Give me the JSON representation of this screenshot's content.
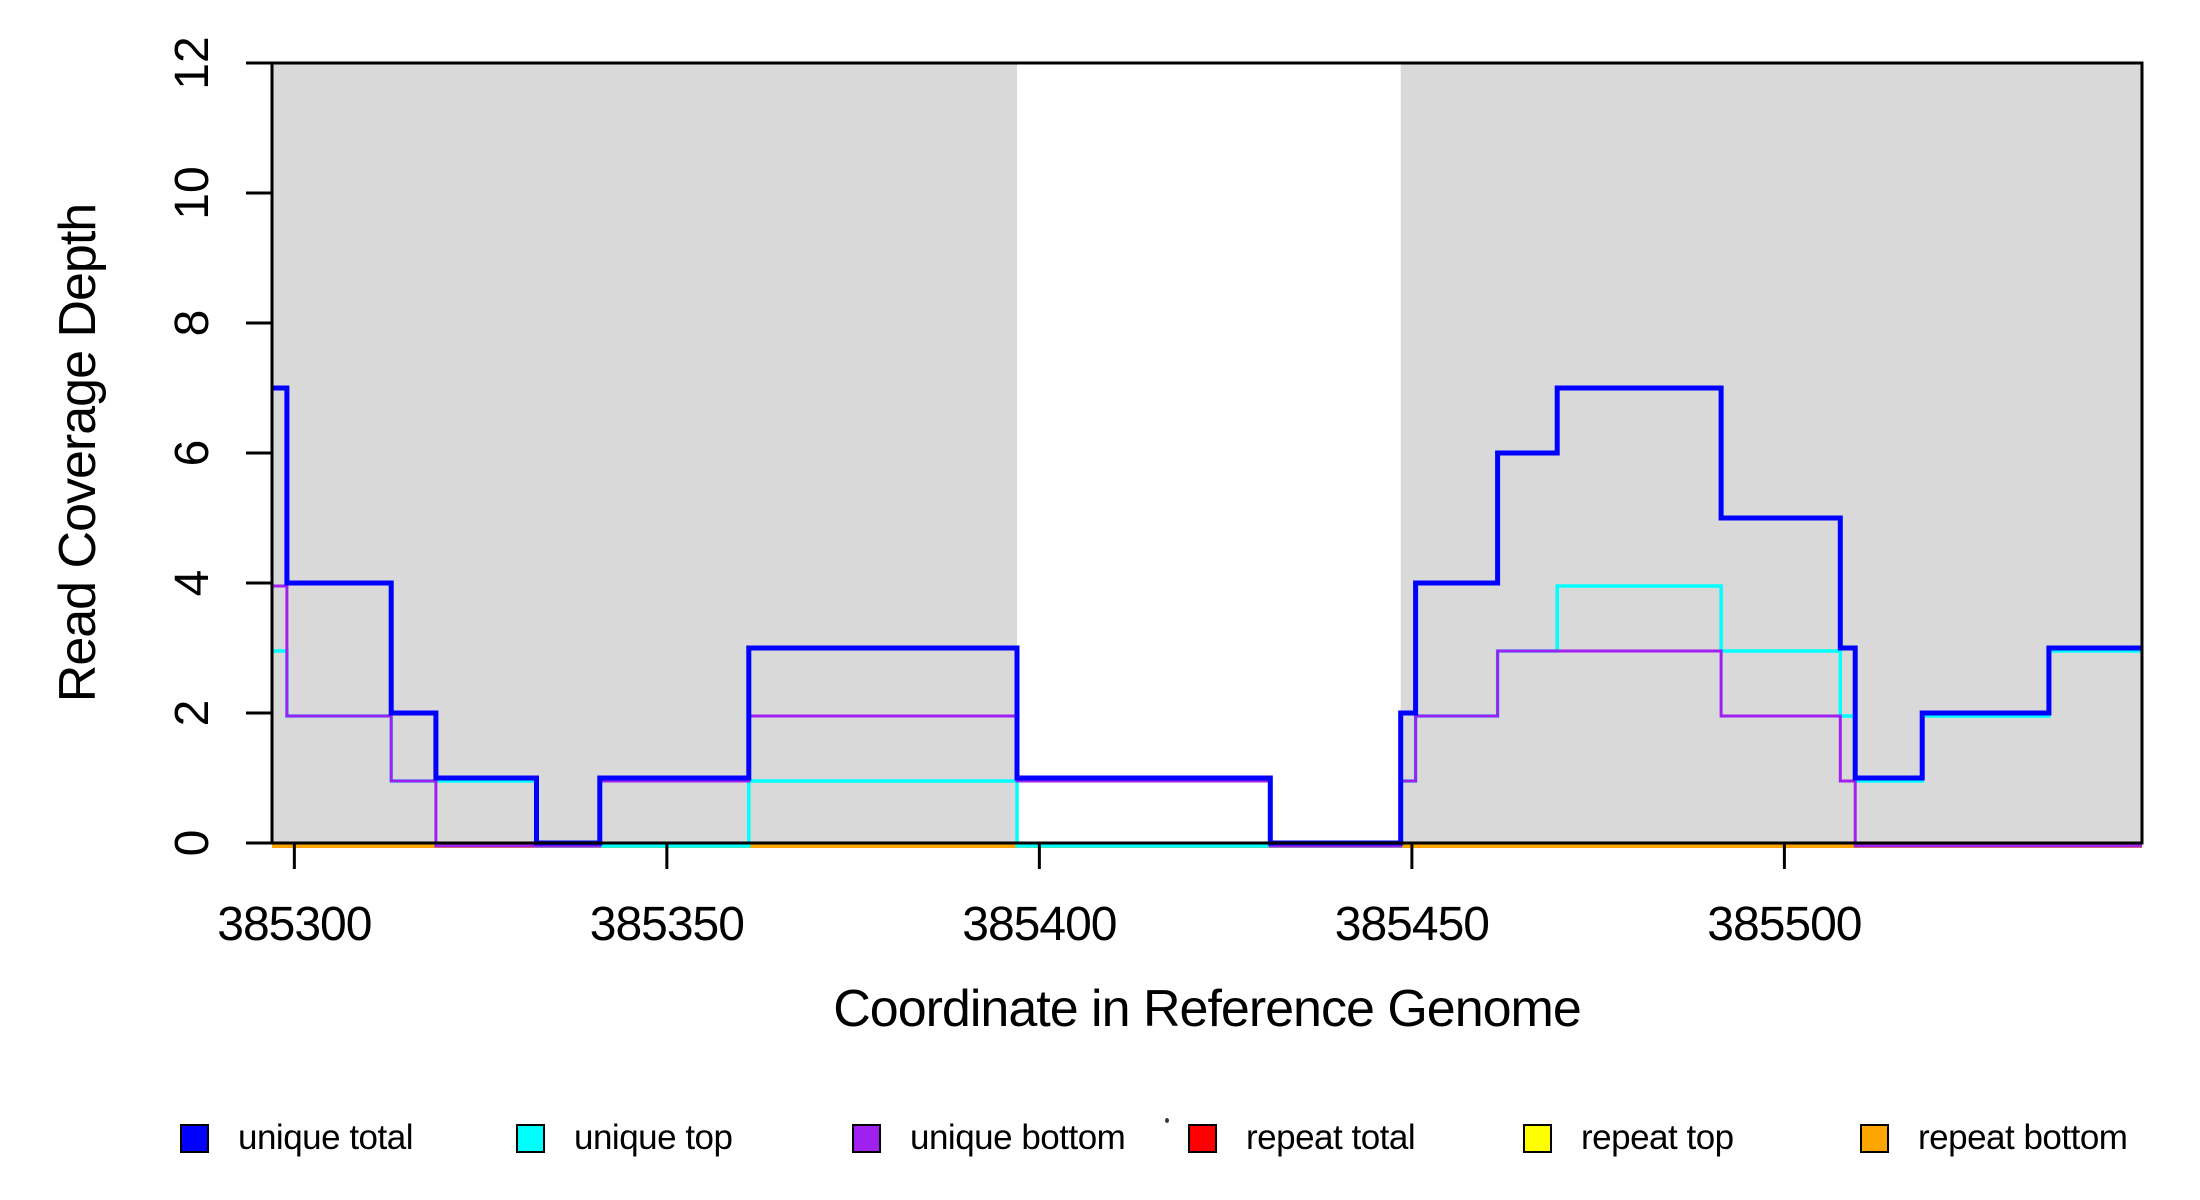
{
  "chart_data": {
    "type": "line",
    "subtype": "step-coverage-plot",
    "title": "",
    "xlabel": "Coordinate in Reference Genome",
    "ylabel": "Read Coverage Depth",
    "xlim": [
      385297,
      385548
    ],
    "ylim": [
      0,
      12
    ],
    "xticks": [
      385300,
      385350,
      385400,
      385450,
      385500
    ],
    "yticks": [
      0,
      2,
      4,
      6,
      8,
      10,
      12
    ],
    "grid": false,
    "legend_position": "bottom",
    "shade_color": "#D9D9D9",
    "axis_color": "#000000",
    "shaded_regions": [
      [
        385297,
        385397
      ],
      [
        385448.5,
        385548
      ]
    ],
    "step_breaks": [
      385297,
      385299,
      385313,
      385319,
      385332.5,
      385341,
      385361,
      385397,
      385431,
      385448.5,
      385450.5,
      385461.5,
      385469.5,
      385491.5,
      385507.5,
      385509.5,
      385518.5,
      385535.5,
      385548
    ],
    "series": [
      {
        "name": "unique total",
        "color": "#0000FF",
        "width": 5,
        "offset": 0,
        "values": [
          7,
          4,
          2,
          1,
          0,
          1,
          3,
          1,
          0,
          2,
          4,
          6,
          7,
          5,
          3,
          1,
          2,
          3
        ]
      },
      {
        "name": "unique top",
        "color": "#00FFFF",
        "width": 3.5,
        "offset": 3,
        "values": [
          3,
          2,
          1,
          1,
          0,
          0,
          1,
          0,
          0,
          1,
          2,
          3,
          4,
          3,
          2,
          1,
          2,
          3
        ]
      },
      {
        "name": "unique bottom",
        "color": "#A020F0",
        "width": 3,
        "offset": 3,
        "values": [
          4,
          2,
          1,
          0,
          0,
          1,
          2,
          1,
          0,
          1,
          2,
          3,
          3,
          2,
          1,
          0,
          0,
          0
        ]
      },
      {
        "name": "repeat total",
        "color": "#FF0000",
        "width": 3,
        "offset": 2.5,
        "values": [
          0,
          0,
          0,
          0,
          0,
          0,
          0,
          0,
          0,
          0,
          0,
          0,
          0,
          0,
          0,
          0,
          0,
          0
        ]
      },
      {
        "name": "repeat top",
        "color": "#FFFF00",
        "width": 4,
        "offset": 2.5,
        "values": [
          0,
          0,
          0,
          0,
          0,
          0,
          0,
          0,
          0,
          0,
          0,
          0,
          0,
          0,
          0,
          0,
          0,
          0
        ]
      },
      {
        "name": "repeat bottom",
        "color": "#FFA500",
        "width": 5,
        "offset": 2.5,
        "values": [
          0,
          0,
          0,
          0,
          0,
          0,
          0,
          0,
          0,
          0,
          0,
          0,
          0,
          0,
          0,
          0,
          0,
          0
        ]
      }
    ],
    "draw_order": [
      3,
      4,
      5,
      1,
      2,
      0
    ],
    "stray_dot": {
      "x": 1165,
      "y": 1118
    }
  },
  "legend": {
    "items": [
      {
        "label": "unique total",
        "color": "#0000FF"
      },
      {
        "label": "unique top",
        "color": "#00FFFF"
      },
      {
        "label": "unique bottom",
        "color": "#A020F0"
      },
      {
        "label": "repeat total",
        "color": "#FF0000"
      },
      {
        "label": "repeat top",
        "color": "#FFFF00"
      },
      {
        "label": "repeat bottom",
        "color": "#FFA500"
      }
    ]
  }
}
